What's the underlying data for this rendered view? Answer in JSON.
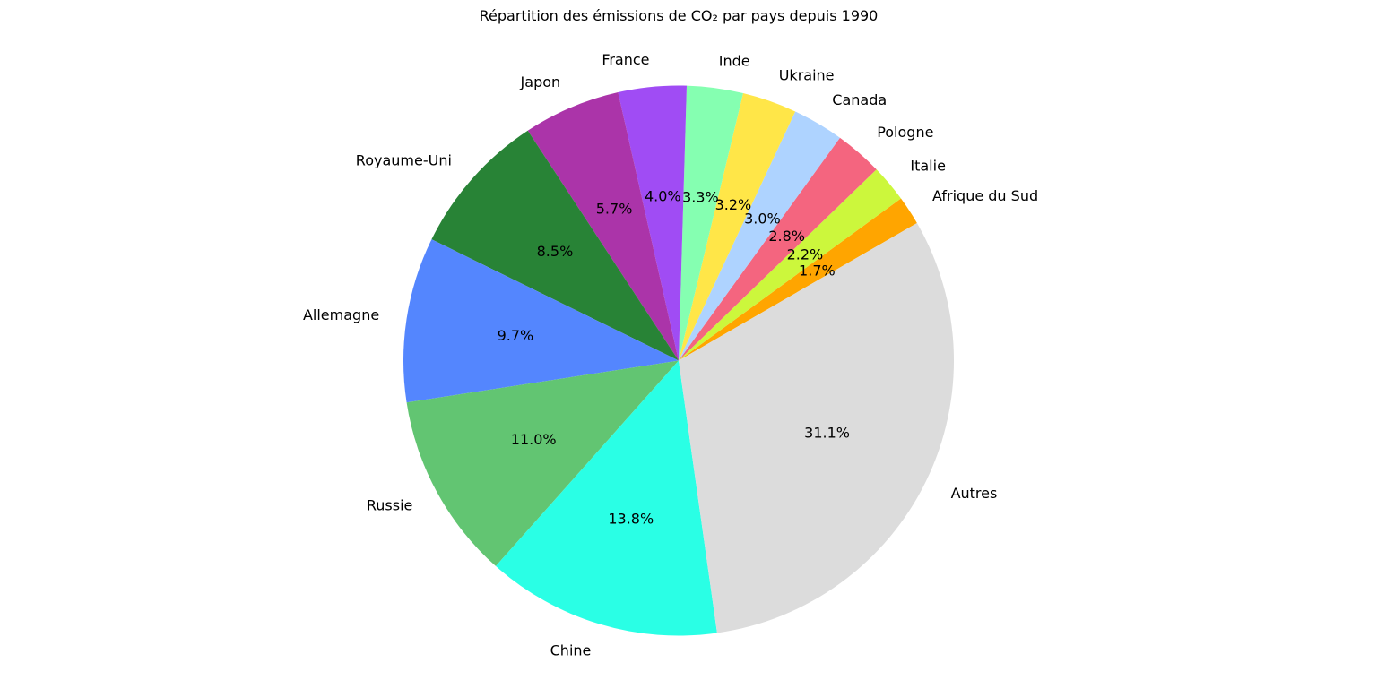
{
  "chart_data": {
    "type": "pie",
    "title": "Répartition des émissions de CO₂ par pays depuis 1990",
    "start_angle_deg": 30,
    "direction": "counterclockwise",
    "slices": [
      {
        "label": "Afrique du Sud",
        "value": 1.7,
        "pct_label": "1.7%",
        "color": "#ffa500"
      },
      {
        "label": "Italie",
        "value": 2.2,
        "pct_label": "2.2%",
        "color": "#ccf73c"
      },
      {
        "label": "Pologne",
        "value": 2.8,
        "pct_label": "2.8%",
        "color": "#f4657f"
      },
      {
        "label": "Canada",
        "value": 3.0,
        "pct_label": "3.0%",
        "color": "#aed3ff"
      },
      {
        "label": "Ukraine",
        "value": 3.2,
        "pct_label": "3.2%",
        "color": "#ffe648"
      },
      {
        "label": "Inde",
        "value": 3.3,
        "pct_label": "3.3%",
        "color": "#85ffb1"
      },
      {
        "label": "France",
        "value": 4.0,
        "pct_label": "4.0%",
        "color": "#a04cf4"
      },
      {
        "label": "Japon",
        "value": 5.7,
        "pct_label": "5.7%",
        "color": "#ab34a9"
      },
      {
        "label": "Royaume-Uni",
        "value": 8.5,
        "pct_label": "8.5%",
        "color": "#288336"
      },
      {
        "label": "Allemagne",
        "value": 9.7,
        "pct_label": "9.7%",
        "color": "#5486fe"
      },
      {
        "label": "Russie",
        "value": 11.0,
        "pct_label": "11.0%",
        "color": "#62c572"
      },
      {
        "label": "Chine",
        "value": 13.8,
        "pct_label": "13.8%",
        "color": "#2affe5"
      },
      {
        "label": "Autres",
        "value": 31.1,
        "pct_label": "31.1%",
        "color": "#dcdcdc"
      }
    ]
  }
}
